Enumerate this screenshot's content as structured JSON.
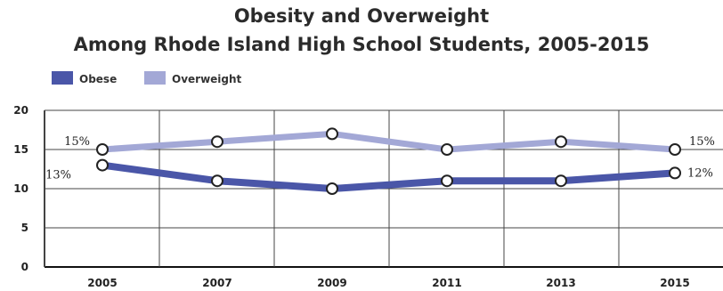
{
  "chart_data": {
    "type": "line",
    "title": "Obesity and Overweight",
    "subtitle": "Among Rhode Island High School Students, 2005-2015",
    "xlabel": "",
    "ylabel": "",
    "x": [
      "2005",
      "2007",
      "2009",
      "2011",
      "2013",
      "2015"
    ],
    "ylim": [
      0,
      20
    ],
    "yticks": [
      "0",
      "5",
      "10",
      "15",
      "20"
    ],
    "grid": true,
    "legend_position": "top-left",
    "series": [
      {
        "name": "Obese",
        "values": [
          13,
          11,
          10,
          11,
          11,
          12
        ],
        "color": "#4a56a8",
        "labels": {
          "first": "13%",
          "last": "12%"
        }
      },
      {
        "name": "Overweight",
        "values": [
          15,
          16,
          17,
          15,
          16,
          15
        ],
        "color": "#a3a8d6",
        "labels": {
          "first": "15%",
          "last": "15%"
        }
      }
    ]
  }
}
